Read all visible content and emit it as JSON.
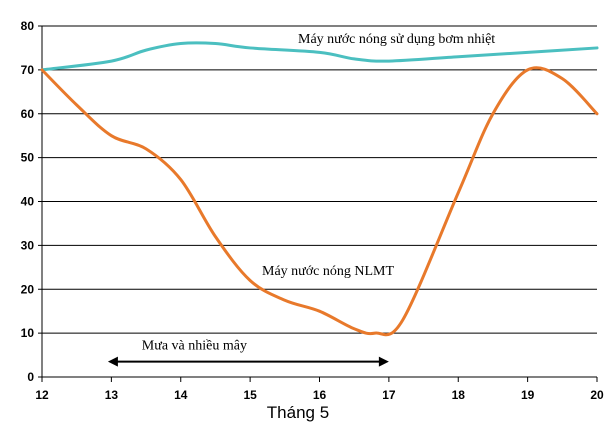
{
  "chart_data": {
    "type": "line",
    "xlabel": "Tháng 5",
    "ylabel": "",
    "xlim": [
      12,
      20
    ],
    "ylim": [
      0,
      80
    ],
    "x_ticks": [
      12,
      13,
      14,
      15,
      16,
      17,
      18,
      19,
      20
    ],
    "y_ticks": [
      0,
      10,
      20,
      30,
      40,
      50,
      60,
      70,
      80
    ],
    "grid": "horizontal",
    "series": [
      {
        "name": "Máy nước nóng sử dụng bơm nhiệt",
        "color": "#4bbfc0",
        "x": [
          12,
          13,
          13.5,
          14,
          14.5,
          15,
          16,
          16.5,
          17,
          18,
          19,
          20
        ],
        "y": [
          70,
          72,
          74.5,
          76,
          76,
          75,
          74,
          72.5,
          72,
          73,
          74,
          75
        ]
      },
      {
        "name": "Máy nước nóng NLMT",
        "color": "#e8792b",
        "x": [
          12,
          12.5,
          13,
          13.5,
          14,
          14.5,
          15,
          15.5,
          16,
          16.5,
          16.8,
          17.2,
          18,
          18.5,
          19,
          19.5,
          20
        ],
        "y": [
          70,
          62,
          55,
          52,
          45,
          32,
          22,
          17.5,
          15,
          11,
          10,
          13,
          42,
          60,
          70,
          68,
          60
        ]
      }
    ],
    "annotations": [
      {
        "text": "Mưa và nhiều mây",
        "x_start": 12.95,
        "x_end": 17,
        "y": 3.5
      }
    ]
  }
}
